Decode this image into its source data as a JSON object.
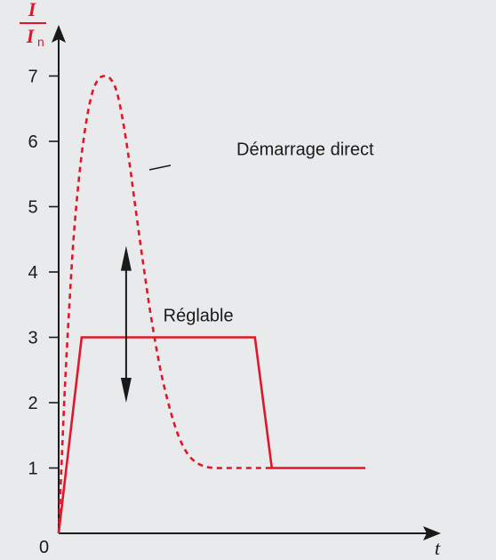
{
  "chart_data": {
    "type": "line",
    "title": "",
    "xlabel": "t",
    "ylabel": {
      "numerator": "I",
      "denominator": "I",
      "denominator_subscript": "n"
    },
    "origin_label": "0",
    "ylim": [
      0,
      7.5
    ],
    "xlim": [
      0,
      10
    ],
    "yticks": [
      1,
      2,
      3,
      4,
      5,
      6,
      7
    ],
    "grid": false,
    "series": [
      {
        "name": "Démarrage direct",
        "style": "dashed",
        "color": "#e2162b",
        "x": [
          0,
          0.08,
          0.2,
          0.35,
          0.5,
          0.7,
          0.9,
          1.1,
          1.3,
          1.5,
          1.7,
          1.9,
          2.1,
          2.3,
          2.5,
          2.75,
          3.0,
          3.3,
          3.6,
          3.9,
          4.2,
          4.5,
          4.8,
          5.1,
          5.4,
          5.7,
          6.0,
          6.5,
          7.0
        ],
        "y": [
          0,
          0.9,
          2.2,
          3.5,
          4.6,
          5.6,
          6.3,
          6.75,
          6.95,
          7.0,
          6.95,
          6.75,
          6.3,
          5.7,
          5.0,
          4.15,
          3.35,
          2.55,
          1.95,
          1.5,
          1.22,
          1.08,
          1.02,
          1.0,
          1.0,
          1.0,
          1.0,
          1.0,
          1.0
        ]
      },
      {
        "name": "Réglable",
        "style": "solid",
        "color": "#e2162b",
        "x": [
          0,
          0.75,
          6.4,
          6.95,
          10
        ],
        "y": [
          0,
          3,
          3,
          1,
          1
        ]
      }
    ],
    "annotations": [
      {
        "text": "Démarrage direct",
        "x": 4.0,
        "y": 5.9,
        "points_to": "dashed curve"
      },
      {
        "text": "Réglable",
        "x": 2.7,
        "y": 3.3,
        "marker": "double-arrow",
        "arrow_x": 2.2,
        "arrow_from": 2.0,
        "arrow_to": 4.4
      }
    ]
  }
}
